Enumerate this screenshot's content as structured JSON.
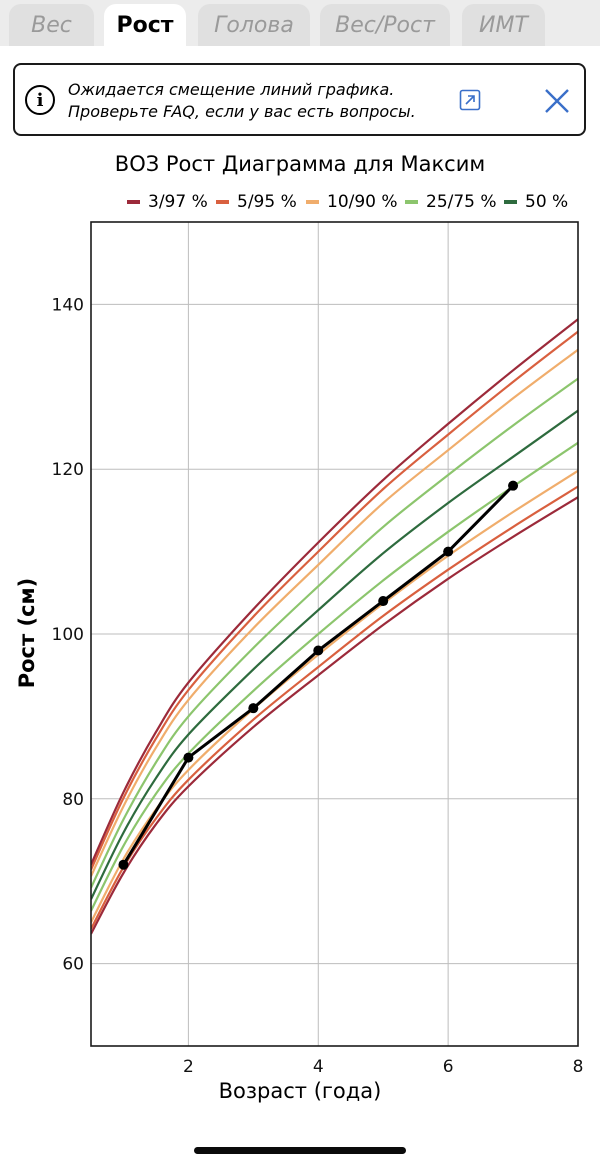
{
  "tabs": [
    {
      "label": "Вес",
      "active": false
    },
    {
      "label": "Рост",
      "active": true
    },
    {
      "label": "Голова",
      "active": false
    },
    {
      "label": "Вес/Рост",
      "active": false
    },
    {
      "label": "ИМТ",
      "active": false
    }
  ],
  "banner": {
    "line1": "Ожидается смещение линий графика.",
    "line2": "Проверьте FAQ, если у вас есть вопросы.",
    "info_icon": "i"
  },
  "chart_data": {
    "type": "line",
    "title": "ВОЗ Рост Диаграмма для Максим",
    "xlabel": "Возраст (года)",
    "ylabel": "Рост (см)",
    "xlim": [
      0.5,
      8
    ],
    "ylim": [
      50,
      150
    ],
    "xticks": [
      2,
      4,
      6,
      8
    ],
    "yticks": [
      60,
      80,
      100,
      120,
      140
    ],
    "grid": true,
    "legend": [
      {
        "label": "3/97 %",
        "color": "#9c2a3a"
      },
      {
        "label": "5/95 %",
        "color": "#d9603f"
      },
      {
        "label": "10/90 %",
        "color": "#f0ad6c"
      },
      {
        "label": "25/75 %",
        "color": "#8cc56d"
      },
      {
        "label": "50 %",
        "color": "#2e6b3e"
      }
    ],
    "ages": [
      0.5,
      1,
      1.5,
      2,
      3,
      4,
      5,
      6,
      7,
      8
    ],
    "percentile_curves": [
      {
        "group": "3/97 %",
        "color": "#9c2a3a",
        "values": [
          63.6,
          71.0,
          76.9,
          81.5,
          88.7,
          95.0,
          101.1,
          106.7,
          111.8,
          116.6
        ]
      },
      {
        "group": "5/95 %",
        "color": "#d9603f",
        "values": [
          64.2,
          71.7,
          77.6,
          82.3,
          89.6,
          96.0,
          102.2,
          107.8,
          113.0,
          117.9
        ]
      },
      {
        "group": "10/90 %",
        "color": "#f0ad6c",
        "values": [
          65.0,
          72.7,
          78.7,
          83.5,
          90.9,
          97.5,
          103.7,
          109.5,
          114.8,
          119.8
        ]
      },
      {
        "group": "25/75 %",
        "color": "#8cc56d",
        "values": [
          66.4,
          74.3,
          80.6,
          85.5,
          93.1,
          100.0,
          106.5,
          112.4,
          117.9,
          123.2
        ]
      },
      {
        "group": "50 %",
        "color": "#2e6b3e",
        "values": [
          67.8,
          75.9,
          82.5,
          87.8,
          95.7,
          102.9,
          109.8,
          115.9,
          121.5,
          127.1
        ]
      },
      {
        "group": "25/75 %",
        "color": "#8cc56d",
        "values": [
          69.2,
          77.5,
          84.4,
          90.0,
          98.3,
          105.8,
          113.0,
          119.3,
          125.3,
          131.0
        ]
      },
      {
        "group": "10/90 %",
        "color": "#f0ad6c",
        "values": [
          70.6,
          79.1,
          86.2,
          92.0,
          100.7,
          108.4,
          115.9,
          122.3,
          128.6,
          134.5
        ]
      },
      {
        "group": "5/95 %",
        "color": "#d9603f",
        "values": [
          71.4,
          80.1,
          87.3,
          93.2,
          102.1,
          110.0,
          117.6,
          124.2,
          130.6,
          136.7
        ]
      },
      {
        "group": "3/97 %",
        "color": "#9c2a3a",
        "values": [
          72.0,
          80.8,
          88.1,
          94.1,
          103.0,
          111.1,
          118.7,
          125.5,
          132.0,
          138.2
        ]
      }
    ],
    "measurements": {
      "name": "Максим",
      "color": "#000000",
      "x": [
        1,
        2,
        3,
        4,
        5,
        6,
        7
      ],
      "y": [
        72,
        85,
        91,
        98,
        104,
        110,
        118
      ]
    }
  }
}
